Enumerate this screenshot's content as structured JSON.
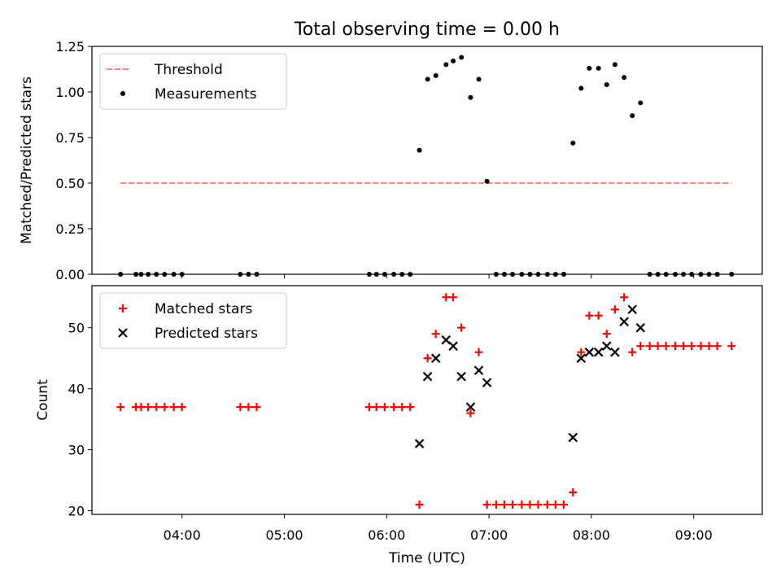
{
  "figure_title": "Total observing time = 0.00 h",
  "x_axis": {
    "label": "Time (UTC)",
    "ticks": [
      {
        "value": 4.0,
        "label": "04:00"
      },
      {
        "value": 5.0,
        "label": "05:00"
      },
      {
        "value": 6.0,
        "label": "06:00"
      },
      {
        "value": 7.0,
        "label": "07:00"
      },
      {
        "value": 8.0,
        "label": "08:00"
      },
      {
        "value": 9.0,
        "label": "09:00"
      }
    ],
    "range": [
      3.12,
      9.67
    ]
  },
  "chart_data": [
    {
      "type": "scatter",
      "id": "top",
      "ylabel": "Matched/Predicted stars",
      "ylim": [
        0.0,
        1.25
      ],
      "yticks": [
        {
          "value": 0.0,
          "label": "0.00"
        },
        {
          "value": 0.25,
          "label": "0.25"
        },
        {
          "value": 0.5,
          "label": "0.50"
        },
        {
          "value": 0.75,
          "label": "0.75"
        },
        {
          "value": 1.0,
          "label": "1.00"
        },
        {
          "value": 1.25,
          "label": "1.25"
        }
      ],
      "legend_position": "top-left",
      "series": [
        {
          "name": "Threshold",
          "kind": "dashed-line",
          "color": "#ff7f7f",
          "x": [
            3.4,
            9.37
          ],
          "y": [
            0.5,
            0.5
          ]
        },
        {
          "name": "Measurements",
          "kind": "dot",
          "color": "#000000",
          "x": [
            3.4,
            3.55,
            3.6,
            3.67,
            3.75,
            3.83,
            3.92,
            4.0,
            4.57,
            4.65,
            4.73,
            5.83,
            5.9,
            5.98,
            6.07,
            6.15,
            6.23,
            6.32,
            6.4,
            6.48,
            6.58,
            6.65,
            6.73,
            6.82,
            6.9,
            6.98,
            7.07,
            7.15,
            7.23,
            7.32,
            7.4,
            7.48,
            7.57,
            7.65,
            7.73,
            7.82,
            7.9,
            7.98,
            8.07,
            8.15,
            8.23,
            8.32,
            8.4,
            8.48,
            8.57,
            8.65,
            8.73,
            8.82,
            8.9,
            8.98,
            9.07,
            9.15,
            9.23,
            9.37
          ],
          "y": [
            0.0,
            0.0,
            0.0,
            0.0,
            0.0,
            0.0,
            0.0,
            0.0,
            0.0,
            0.0,
            0.0,
            0.0,
            0.0,
            0.0,
            0.0,
            0.0,
            0.0,
            0.68,
            1.07,
            1.09,
            1.15,
            1.17,
            1.19,
            0.97,
            1.07,
            0.51,
            0.0,
            0.0,
            0.0,
            0.0,
            0.0,
            0.0,
            0.0,
            0.0,
            0.0,
            0.72,
            1.02,
            1.13,
            1.13,
            1.04,
            1.15,
            1.08,
            0.87,
            0.94,
            0.0,
            0.0,
            0.0,
            0.0,
            0.0,
            0.0,
            0.0,
            0.0,
            0.0,
            0.0
          ]
        }
      ]
    },
    {
      "type": "scatter",
      "id": "bottom",
      "ylabel": "Count",
      "ylim": [
        19.4,
        56.9
      ],
      "yticks": [
        {
          "value": 20,
          "label": "20"
        },
        {
          "value": 30,
          "label": "30"
        },
        {
          "value": 40,
          "label": "40"
        },
        {
          "value": 50,
          "label": "50"
        }
      ],
      "legend_position": "top-left",
      "series": [
        {
          "name": "Matched stars",
          "kind": "plus",
          "color": "#ff0000",
          "x": [
            3.4,
            3.55,
            3.6,
            3.67,
            3.75,
            3.83,
            3.92,
            4.0,
            4.57,
            4.65,
            4.73,
            5.83,
            5.9,
            5.98,
            6.07,
            6.15,
            6.23,
            6.32,
            6.4,
            6.48,
            6.58,
            6.65,
            6.73,
            6.82,
            6.9,
            6.98,
            7.07,
            7.15,
            7.23,
            7.32,
            7.4,
            7.48,
            7.57,
            7.65,
            7.73,
            7.82,
            7.9,
            7.98,
            8.07,
            8.15,
            8.23,
            8.32,
            8.4,
            8.48,
            8.57,
            8.65,
            8.73,
            8.82,
            8.9,
            8.98,
            9.07,
            9.15,
            9.23,
            9.37
          ],
          "y": [
            37,
            37,
            37,
            37,
            37,
            37,
            37,
            37,
            37,
            37,
            37,
            37,
            37,
            37,
            37,
            37,
            37,
            21,
            45,
            49,
            55,
            55,
            50,
            36,
            46,
            21,
            21,
            21,
            21,
            21,
            21,
            21,
            21,
            21,
            21,
            23,
            46,
            52,
            52,
            49,
            53,
            55,
            46,
            47,
            47,
            47,
            47,
            47,
            47,
            47,
            47,
            47,
            47,
            47
          ]
        },
        {
          "name": "Predicted stars",
          "kind": "x",
          "color": "#000000",
          "x": [
            6.32,
            6.4,
            6.48,
            6.58,
            6.65,
            6.73,
            6.82,
            6.9,
            6.98,
            7.82,
            7.9,
            7.98,
            8.07,
            8.15,
            8.23,
            8.32,
            8.4,
            8.48
          ],
          "y": [
            31,
            42,
            45,
            48,
            47,
            42,
            37,
            43,
            41,
            32,
            45,
            46,
            46,
            47,
            46,
            51,
            53,
            50
          ]
        }
      ]
    }
  ]
}
